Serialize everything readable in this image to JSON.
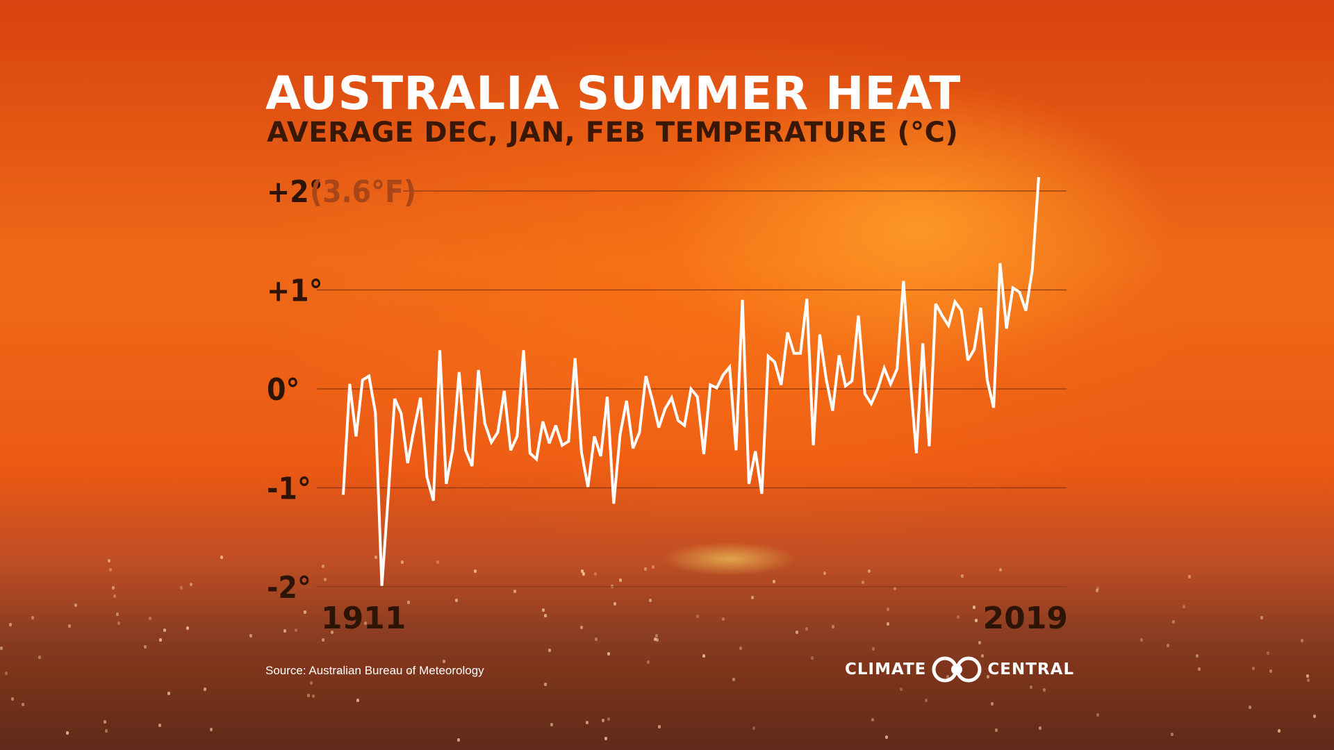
{
  "title": "AUSTRALIA SUMMER HEAT",
  "subtitle": "AVERAGE DEC, JAN, FEB TEMPERATURE (°C)",
  "source": "Source: Australian Bureau of Meteorology",
  "logo": {
    "left_text": "CLIMATE",
    "right_text": "CENTRAL",
    "icon": "climate-central-rings-icon"
  },
  "colors": {
    "line": "#ffffff",
    "grid": "#8a3a10",
    "label": "#2e1406",
    "note": "#a8461a"
  },
  "chart_data": {
    "type": "line",
    "title": "AUSTRALIA SUMMER HEAT",
    "subtitle": "AVERAGE DEC, JAN, FEB TEMPERATURE (°C)",
    "xlabel": "",
    "ylabel": "",
    "xlim": [
      1911,
      2019
    ],
    "ylim": [
      -2,
      2
    ],
    "grid": true,
    "y_ticks": [
      {
        "value": 2,
        "label": "+2°",
        "note": "(3.6°F)"
      },
      {
        "value": 1,
        "label": "+1°"
      },
      {
        "value": 0,
        "label": "0°"
      },
      {
        "value": -1,
        "label": "-1°"
      },
      {
        "value": -2,
        "label": "-2°"
      }
    ],
    "x_ticks": [
      {
        "value": 1911,
        "label": "1911"
      },
      {
        "value": 2019,
        "label": "2019"
      }
    ],
    "series": [
      {
        "x": [
          1911,
          1912,
          1913,
          1914,
          1915,
          1916,
          1917,
          1918,
          1919,
          1920,
          1921,
          1922,
          1923,
          1924,
          1925,
          1926,
          1927,
          1928,
          1929,
          1930,
          1931,
          1932,
          1933,
          1934,
          1935,
          1936,
          1937,
          1938,
          1939,
          1940,
          1941,
          1942,
          1943,
          1944,
          1945,
          1946,
          1947,
          1948,
          1949,
          1950,
          1951,
          1952,
          1953,
          1954,
          1955,
          1956,
          1957,
          1958,
          1959,
          1960,
          1961,
          1962,
          1963,
          1964,
          1965,
          1966,
          1967,
          1968,
          1969,
          1970,
          1971,
          1972,
          1973,
          1974,
          1975,
          1976,
          1977,
          1978,
          1979,
          1980,
          1981,
          1982,
          1983,
          1984,
          1985,
          1986,
          1987,
          1988,
          1989,
          1990,
          1991,
          1992,
          1993,
          1994,
          1995,
          1996,
          1997,
          1998,
          1999,
          2000,
          2001,
          2002,
          2003,
          2004,
          2005,
          2006,
          2007,
          2008,
          2009,
          2010,
          2011,
          2012,
          2013,
          2014,
          2015,
          2016,
          2017,
          2018,
          2019
        ],
        "values": [
          -1.07,
          0.05,
          -0.48,
          0.09,
          0.13,
          -0.24,
          -1.99,
          -1.07,
          -0.1,
          -0.25,
          -0.75,
          -0.4,
          -0.09,
          -0.89,
          -1.13,
          0.39,
          -0.96,
          -0.61,
          0.17,
          -0.62,
          -0.78,
          0.19,
          -0.35,
          -0.54,
          -0.44,
          -0.02,
          -0.62,
          -0.48,
          0.39,
          -0.65,
          -0.71,
          -0.33,
          -0.55,
          -0.37,
          -0.57,
          -0.53,
          0.31,
          -0.64,
          -0.99,
          -0.48,
          -0.68,
          -0.08,
          -1.16,
          -0.46,
          -0.12,
          -0.6,
          -0.44,
          0.13,
          -0.11,
          -0.39,
          -0.2,
          -0.09,
          -0.32,
          -0.37,
          0.0,
          -0.08,
          -0.66,
          0.04,
          0.01,
          0.14,
          0.22,
          -0.62,
          0.9,
          -0.96,
          -0.63,
          -1.06,
          0.33,
          0.27,
          0.04,
          0.57,
          0.36,
          0.36,
          0.91,
          -0.57,
          0.55,
          0.1,
          -0.22,
          0.34,
          0.03,
          0.08,
          0.74,
          -0.05,
          -0.15,
          0.0,
          0.21,
          0.05,
          0.2,
          1.09,
          0.14,
          -0.65,
          0.46,
          -0.58,
          0.86,
          0.74,
          0.64,
          0.88,
          0.79,
          0.29,
          0.4,
          0.82,
          0.09,
          -0.19,
          1.27,
          0.61,
          1.02,
          0.98,
          0.79,
          1.2,
          2.14
        ]
      }
    ]
  }
}
